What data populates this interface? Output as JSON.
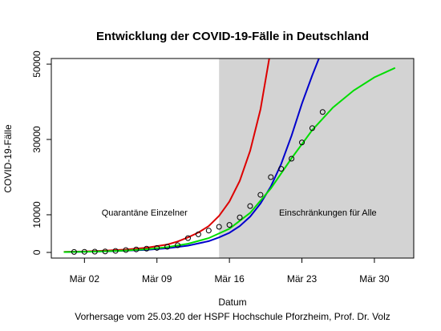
{
  "chart_data": {
    "type": "line",
    "title": "Entwicklung der COVID-19-Fälle in Deutschland",
    "xlabel": "Datum",
    "ylabel": "COVID-19-Fälle",
    "caption": "Vorhersage vom 25.03.20 der HSPF Hochschule Pforzheim, Prof. Dr. Volz",
    "x_axis": {
      "unit": "days since 2020-02-29",
      "range": [
        -1.2,
        33.8
      ],
      "ticks": [
        {
          "x": 2,
          "label": "Mär 02"
        },
        {
          "x": 9,
          "label": "Mär 09"
        },
        {
          "x": 16,
          "label": "Mär 16"
        },
        {
          "x": 23,
          "label": "Mär 23"
        },
        {
          "x": 30,
          "label": "Mär 30"
        }
      ]
    },
    "y_axis": {
      "range": [
        -1500,
        51500
      ],
      "ticks": [
        0,
        10000,
        30000,
        50000
      ],
      "tick_labels": [
        "0",
        "10000",
        "30000",
        "50000"
      ]
    },
    "shaded_region": {
      "x_start": 15,
      "x_end": 33.8,
      "color": "#d3d3d3"
    },
    "annotations": [
      {
        "text": "Quarantäne Einzelner",
        "x": 7.8,
        "y": 9800
      },
      {
        "text": "Einschränkungen für Alle",
        "x": 25.5,
        "y": 9800
      }
    ],
    "series": [
      {
        "name": "",
        "style": "points",
        "color": "#000000",
        "x": [
          1,
          2,
          3,
          4,
          5,
          6,
          7,
          8,
          9,
          10,
          11,
          12,
          13,
          14,
          15,
          16,
          17,
          18,
          19,
          20,
          21,
          22,
          23,
          24,
          25
        ],
        "y": [
          130,
          160,
          200,
          260,
          400,
          640,
          800,
          1000,
          1200,
          1500,
          1900,
          3800,
          4800,
          5800,
          6800,
          7300,
          9300,
          12300,
          15300,
          20000,
          22200,
          24900,
          29200,
          33000,
          37300
        ]
      },
      {
        "name": "",
        "style": "line",
        "color": "#dd0000",
        "x": [
          0,
          2,
          4,
          6,
          8,
          10,
          11,
          12,
          13,
          14,
          15,
          16,
          17,
          18,
          19,
          20
        ],
        "y": [
          150,
          250,
          450,
          750,
          1250,
          2100,
          2900,
          4000,
          5300,
          7000,
          9700,
          13500,
          19000,
          27000,
          38000,
          54000
        ]
      },
      {
        "name": "",
        "style": "line",
        "color": "#0000cc",
        "x": [
          0,
          2,
          4,
          6,
          8,
          10,
          12,
          14,
          15,
          16,
          17,
          18,
          19,
          20,
          21,
          22,
          23,
          24,
          25
        ],
        "y": [
          100,
          180,
          280,
          450,
          700,
          1100,
          1800,
          3000,
          4000,
          5200,
          7000,
          9500,
          13000,
          17500,
          23500,
          31000,
          39500,
          47000,
          54000
        ]
      },
      {
        "name": "",
        "style": "line",
        "color": "#00dd00",
        "x": [
          0,
          2,
          4,
          6,
          8,
          10,
          12,
          14,
          16,
          18,
          20,
          22,
          24,
          26,
          28,
          30,
          32
        ],
        "y": [
          100,
          180,
          300,
          500,
          850,
          1400,
          2300,
          3800,
          6300,
          10500,
          17000,
          25000,
          32500,
          38500,
          43000,
          46500,
          49000
        ]
      }
    ]
  }
}
